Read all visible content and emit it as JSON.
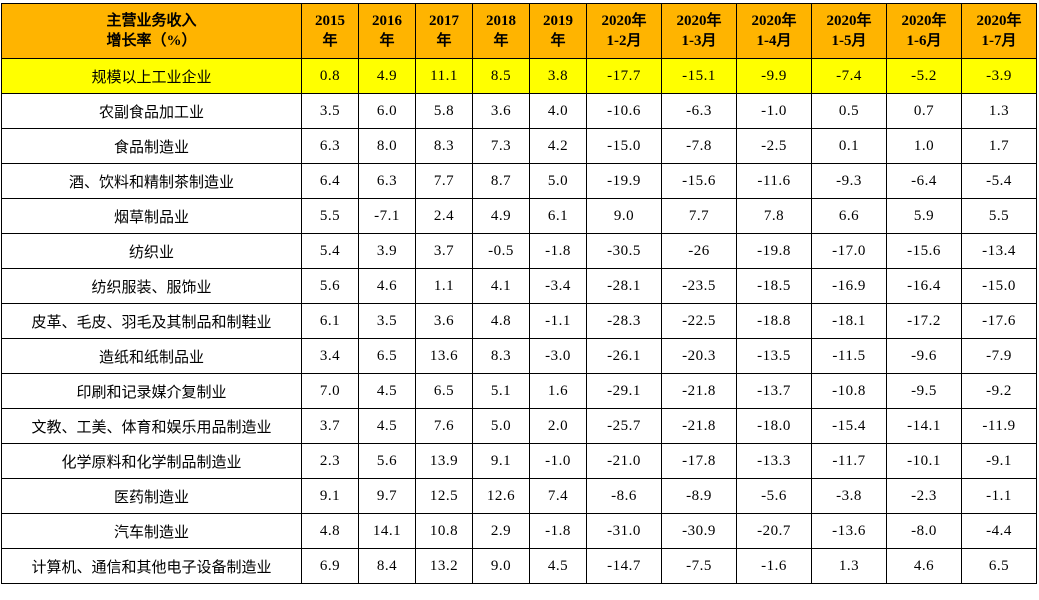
{
  "colors": {
    "header_bg": "#FFB400",
    "highlight_bg": "#FFFF00",
    "normal_bg": "#FFFFFF",
    "border": "#000000",
    "text": "#000000"
  },
  "table": {
    "corner_header": "主营业务收入\n增长率（%）",
    "column_headers": [
      "2015\n年",
      "2016\n年",
      "2017\n年",
      "2018\n年",
      "2019\n年",
      "2020年\n1-2月",
      "2020年\n1-3月",
      "2020年\n1-4月",
      "2020年\n1-5月",
      "2020年\n1-6月",
      "2020年\n1-7月"
    ],
    "rows": [
      {
        "name": "规模以上工业企业",
        "highlight": true,
        "values": [
          "0.8",
          "4.9",
          "11.1",
          "8.5",
          "3.8",
          "-17.7",
          "-15.1",
          "-9.9",
          "-7.4",
          "-5.2",
          "-3.9"
        ]
      },
      {
        "name": "农副食品加工业",
        "highlight": false,
        "values": [
          "3.5",
          "6.0",
          "5.8",
          "3.6",
          "4.0",
          "-10.6",
          "-6.3",
          "-1.0",
          "0.5",
          "0.7",
          "1.3"
        ]
      },
      {
        "name": "食品制造业",
        "highlight": false,
        "values": [
          "6.3",
          "8.0",
          "8.3",
          "7.3",
          "4.2",
          "-15.0",
          "-7.8",
          "-2.5",
          "0.1",
          "1.0",
          "1.7"
        ]
      },
      {
        "name": "酒、饮料和精制茶制造业",
        "highlight": false,
        "values": [
          "6.4",
          "6.3",
          "7.7",
          "8.7",
          "5.0",
          "-19.9",
          "-15.6",
          "-11.6",
          "-9.3",
          "-6.4",
          "-5.4"
        ]
      },
      {
        "name": "烟草制品业",
        "highlight": false,
        "values": [
          "5.5",
          "-7.1",
          "2.4",
          "4.9",
          "6.1",
          "9.0",
          "7.7",
          "7.8",
          "6.6",
          "5.9",
          "5.5"
        ]
      },
      {
        "name": "纺织业",
        "highlight": false,
        "values": [
          "5.4",
          "3.9",
          "3.7",
          "-0.5",
          "-1.8",
          "-30.5",
          "-26",
          "-19.8",
          "-17.0",
          "-15.6",
          "-13.4"
        ]
      },
      {
        "name": "纺织服装、服饰业",
        "highlight": false,
        "values": [
          "5.6",
          "4.6",
          "1.1",
          "4.1",
          "-3.4",
          "-28.1",
          "-23.5",
          "-18.5",
          "-16.9",
          "-16.4",
          "-15.0"
        ]
      },
      {
        "name": "皮革、毛皮、羽毛及其制品和制鞋业",
        "highlight": false,
        "values": [
          "6.1",
          "3.5",
          "3.6",
          "4.8",
          "-1.1",
          "-28.3",
          "-22.5",
          "-18.8",
          "-18.1",
          "-17.2",
          "-17.6"
        ]
      },
      {
        "name": "造纸和纸制品业",
        "highlight": false,
        "values": [
          "3.4",
          "6.5",
          "13.6",
          "8.3",
          "-3.0",
          "-26.1",
          "-20.3",
          "-13.5",
          "-11.5",
          "-9.6",
          "-7.9"
        ]
      },
      {
        "name": "印刷和记录媒介复制业",
        "highlight": false,
        "values": [
          "7.0",
          "4.5",
          "6.5",
          "5.1",
          "1.6",
          "-29.1",
          "-21.8",
          "-13.7",
          "-10.8",
          "-9.5",
          "-9.2"
        ]
      },
      {
        "name": "文教、工美、体育和娱乐用品制造业",
        "highlight": false,
        "values": [
          "3.7",
          "4.5",
          "7.6",
          "5.0",
          "2.0",
          "-25.7",
          "-21.8",
          "-18.0",
          "-15.4",
          "-14.1",
          "-11.9"
        ]
      },
      {
        "name": "化学原料和化学制品制造业",
        "highlight": false,
        "values": [
          "2.3",
          "5.6",
          "13.9",
          "9.1",
          "-1.0",
          "-21.0",
          "-17.8",
          "-13.3",
          "-11.7",
          "-10.1",
          "-9.1"
        ]
      },
      {
        "name": "医药制造业",
        "highlight": false,
        "values": [
          "9.1",
          "9.7",
          "12.5",
          "12.6",
          "7.4",
          "-8.6",
          "-8.9",
          "-5.6",
          "-3.8",
          "-2.3",
          "-1.1"
        ]
      },
      {
        "name": "汽车制造业",
        "highlight": false,
        "values": [
          "4.8",
          "14.1",
          "10.8",
          "2.9",
          "-1.8",
          "-31.0",
          "-30.9",
          "-20.7",
          "-13.6",
          "-8.0",
          "-4.4"
        ]
      },
      {
        "name": "计算机、通信和其他电子设备制造业",
        "highlight": false,
        "values": [
          "6.9",
          "8.4",
          "13.2",
          "9.0",
          "4.5",
          "-14.7",
          "-7.5",
          "-1.6",
          "1.3",
          "4.6",
          "6.5"
        ]
      }
    ]
  }
}
